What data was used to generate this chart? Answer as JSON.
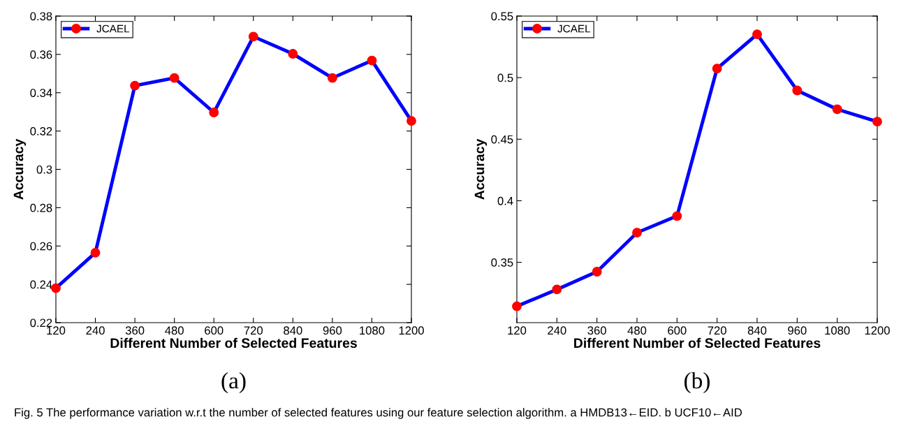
{
  "chart_data": [
    {
      "type": "line",
      "xlabel": "Different Number of Selected Features",
      "ylabel": "Accuracy",
      "x": [
        120,
        240,
        360,
        480,
        600,
        720,
        840,
        960,
        1080,
        1200
      ],
      "xlim": [
        120,
        1200
      ],
      "xticks": [
        120,
        240,
        360,
        480,
        600,
        720,
        840,
        960,
        1080,
        1200
      ],
      "ylim": [
        0.22,
        0.38
      ],
      "yticks": [
        0.22,
        0.24,
        0.26,
        0.28,
        0.3,
        0.32,
        0.34,
        0.36,
        0.38
      ],
      "legend": "top left",
      "marker": "circle",
      "line_style": "solid",
      "grid": false,
      "series": [
        {
          "name": "JCAEL",
          "color": "#0000ff",
          "colors": [
            "#ff0000",
            "#ff0000",
            "#ff0000",
            "#ff0000",
            "#ff0000",
            "#ff0000",
            "#ff0000",
            "#ff0000",
            "#ff0000",
            "#ff0000"
          ],
          "values": [
            0.238,
            0.2565,
            0.3437,
            0.3477,
            0.3297,
            0.3693,
            0.3603,
            0.3477,
            0.3568,
            0.3253
          ]
        }
      ],
      "annotations": [
        "(a)"
      ]
    },
    {
      "type": "line",
      "xlabel": "Different Number of Selected Features",
      "ylabel": "Accuracy",
      "x": [
        120,
        240,
        360,
        480,
        600,
        720,
        840,
        960,
        1080,
        1200
      ],
      "xlim": [
        120,
        1200
      ],
      "xticks": [
        120,
        240,
        360,
        480,
        600,
        720,
        840,
        960,
        1080,
        1200
      ],
      "ylim": [
        0.301,
        0.55
      ],
      "yticks": [
        0.35,
        0.4,
        0.45,
        0.5,
        0.55
      ],
      "legend": "top left",
      "marker": "circle",
      "line_style": "solid",
      "grid": false,
      "series": [
        {
          "name": "JCAEL",
          "color": "#0000ff",
          "colors": [
            "#ff0000",
            "#ff0000",
            "#ff0000",
            "#ff0000",
            "#ff0000",
            "#ff0000",
            "#ff0000",
            "#ff0000",
            "#ff0000",
            "#ff0000"
          ],
          "values": [
            0.3143,
            0.328,
            0.3424,
            0.3741,
            0.3876,
            0.5074,
            0.5352,
            0.4896,
            0.4743,
            0.4643
          ]
        }
      ],
      "annotations": [
        "(b)",
        "Fig. 5 The performance variation w.r.t the number of selected features using our feature selection algorithm. a HMDB13←EID. b UCF10←AID"
      ]
    }
  ]
}
